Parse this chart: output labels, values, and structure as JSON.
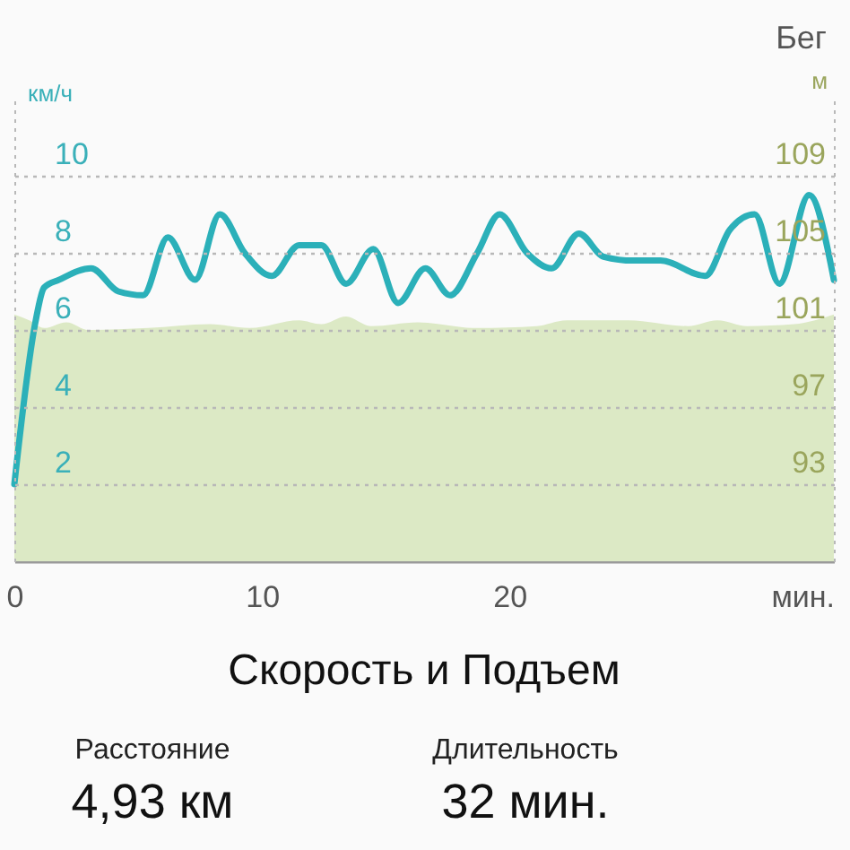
{
  "chart_data": {
    "type": "line",
    "title": "Скорость и Подъем",
    "xlabel": "мин.",
    "ylabel": "км/ч",
    "y2label": "м",
    "xlim": [
      0,
      33.1
    ],
    "xticks": [
      0,
      10,
      20
    ],
    "ylim": [
      0,
      12
    ],
    "yticks": [
      2,
      4,
      6,
      8,
      10
    ],
    "y2lim": [
      89,
      113
    ],
    "y2ticks": [
      93,
      97,
      101,
      105,
      109
    ],
    "grid": "y",
    "annotations": [
      "Бег",
      "Расстояние",
      "4,93 км",
      "Длительность",
      "32 мин."
    ],
    "series": [
      {
        "type": "area",
        "axis": "y2",
        "color": "#dce9c5",
        "x": [
          0,
          0.6,
          1.2,
          2.1,
          3.0,
          5.4,
          7.9,
          9.5,
          11.5,
          12.4,
          13.4,
          14.4,
          16.3,
          18.7,
          21.1,
          22.3,
          24.8,
          27.2,
          28.4,
          29.6,
          31.5,
          33.1
        ],
        "values": [
          101.8,
          101.5,
          101.1,
          101.4,
          101.0,
          101.1,
          101.3,
          101.1,
          101.5,
          101.3,
          101.7,
          101.2,
          101.4,
          101.1,
          101.2,
          101.5,
          101.5,
          101.2,
          101.5,
          101.2,
          101.3,
          101.8
        ]
      },
      {
        "color": "#2bb0b9",
        "x": [
          0,
          0.85,
          1.2,
          1.8,
          3.1,
          4.2,
          5.2,
          6.2,
          7.3,
          8.3,
          9.3,
          10.4,
          11.5,
          12.4,
          13.4,
          14.5,
          15.5,
          16.6,
          17.6,
          18.7,
          19.6,
          20.7,
          21.7,
          22.8,
          23.8,
          25.0,
          26.1,
          27.9,
          28.9,
          29.9,
          30.9,
          32.1,
          33.1
        ],
        "values": [
          2.0,
          6.2,
          7.1,
          7.3,
          7.6,
          7.0,
          6.9,
          8.4,
          7.3,
          9.0,
          8.0,
          7.4,
          8.2,
          8.2,
          7.2,
          8.1,
          6.7,
          7.6,
          6.9,
          8.0,
          9.0,
          8.0,
          7.6,
          8.5,
          7.9,
          7.8,
          7.8,
          7.4,
          8.6,
          9.0,
          7.2,
          9.5,
          7.3
        ]
      }
    ]
  }
}
